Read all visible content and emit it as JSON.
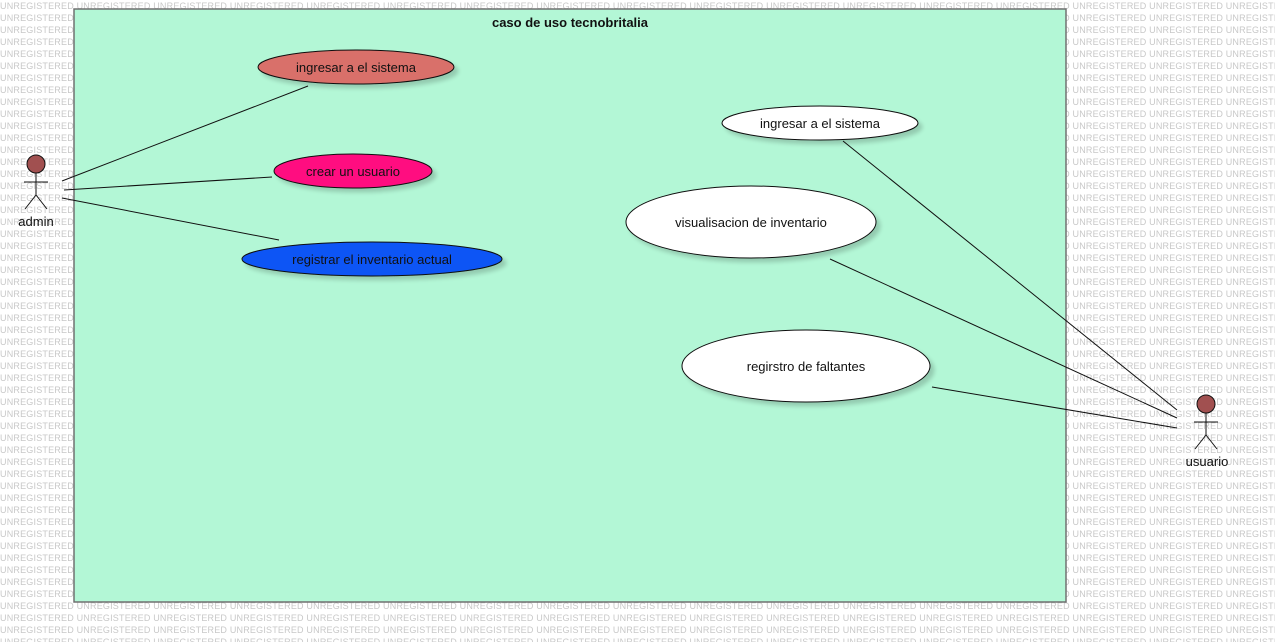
{
  "watermark": "UNREGISTERED",
  "diagram": {
    "title": "caso de uso tecnobritalia",
    "boundary_color": "#b3f7d6",
    "actors": [
      {
        "id": "admin",
        "label": "admin",
        "color": "#a15050"
      },
      {
        "id": "usuario",
        "label": "usuario",
        "color": "#a15050"
      }
    ],
    "use_cases": [
      {
        "id": "uc_admin_login",
        "label": "ingresar a el sistema",
        "fill": "#d9706b"
      },
      {
        "id": "uc_crear_usuario",
        "label": "crear un usuario",
        "fill": "#ff0a80"
      },
      {
        "id": "uc_registrar_inv",
        "label": "registrar el inventario actual",
        "fill": "#0855f5"
      },
      {
        "id": "uc_user_login",
        "label": "ingresar a el sistema",
        "fill": "#ffffff"
      },
      {
        "id": "uc_visualisacion",
        "label": "visualisacion de inventario",
        "fill": "#ffffff"
      },
      {
        "id": "uc_faltantes",
        "label": "regirstro de faltantes",
        "fill": "#ffffff"
      }
    ],
    "associations": [
      {
        "from": "admin",
        "to": "uc_admin_login"
      },
      {
        "from": "admin",
        "to": "uc_crear_usuario"
      },
      {
        "from": "admin",
        "to": "uc_registrar_inv"
      },
      {
        "from": "usuario",
        "to": "uc_user_login"
      },
      {
        "from": "usuario",
        "to": "uc_visualisacion"
      },
      {
        "from": "usuario",
        "to": "uc_faltantes"
      }
    ]
  }
}
